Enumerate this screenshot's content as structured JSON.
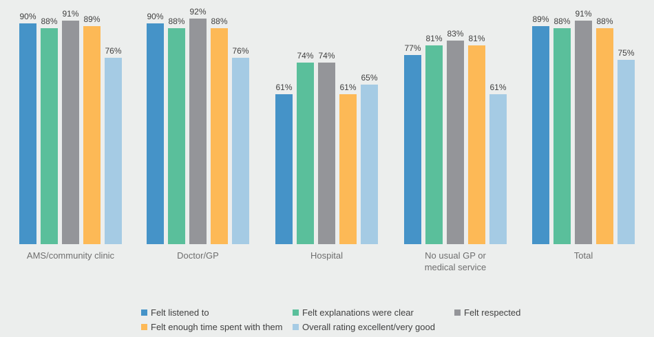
{
  "chart_data": {
    "type": "bar",
    "title": "",
    "xlabel": "",
    "ylabel": "",
    "value_suffix": "%",
    "ylim": [
      0,
      100
    ],
    "grid": false,
    "legend_position": "bottom",
    "background_color": "#eceeed",
    "categories": [
      "AMS/community clinic",
      "Doctor/GP",
      "Hospital",
      "No usual GP or medical service",
      "Total"
    ],
    "series": [
      {
        "name": "Felt listened to",
        "color": "#4593c8",
        "values": [
          90,
          90,
          61,
          77,
          89
        ]
      },
      {
        "name": "Felt explanations were clear",
        "color": "#5abf9b",
        "values": [
          88,
          88,
          74,
          81,
          88
        ]
      },
      {
        "name": "Felt respected",
        "color": "#949599",
        "values": [
          91,
          92,
          74,
          83,
          91
        ]
      },
      {
        "name": "Felt enough time spent with them",
        "color": "#fdb956",
        "values": [
          89,
          88,
          61,
          81,
          88
        ]
      },
      {
        "name": "Overall rating excellent/very good",
        "color": "#a5cbe4",
        "values": [
          76,
          76,
          65,
          61,
          75
        ]
      }
    ]
  }
}
